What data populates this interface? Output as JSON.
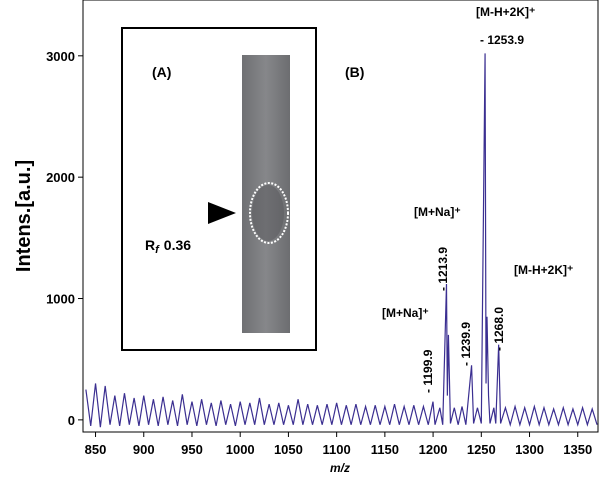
{
  "chart_data": {
    "type": "line",
    "xlabel": "m/z",
    "ylabel": "Intens.[a.u.]",
    "color": "#3b2f91",
    "xlim": [
      837,
      1371
    ],
    "ylim": [
      -100,
      3460
    ],
    "xticks": [
      850,
      900,
      950,
      1000,
      1050,
      1100,
      1150,
      1200,
      1250,
      1300,
      1350
    ],
    "yticks": [
      0,
      1000,
      2000,
      3000
    ],
    "x": [
      840,
      845,
      850,
      855,
      860,
      865,
      870,
      875,
      880,
      885,
      890,
      895,
      900,
      905,
      910,
      915,
      920,
      925,
      930,
      935,
      940,
      945,
      950,
      955,
      960,
      965,
      970,
      975,
      980,
      985,
      990,
      995,
      1000,
      1005,
      1010,
      1015,
      1020,
      1025,
      1030,
      1035,
      1040,
      1045,
      1050,
      1055,
      1060,
      1065,
      1070,
      1075,
      1080,
      1085,
      1090,
      1095,
      1100,
      1105,
      1110,
      1115,
      1120,
      1125,
      1130,
      1135,
      1140,
      1145,
      1150,
      1155,
      1160,
      1165,
      1170,
      1175,
      1180,
      1185,
      1190,
      1195,
      1199.9,
      1202,
      1207,
      1210,
      1213.9,
      1214.8,
      1215.9,
      1218,
      1222,
      1226,
      1230,
      1234,
      1239.9,
      1242,
      1246,
      1250,
      1253.9,
      1254.9,
      1255.9,
      1257.5,
      1259,
      1263,
      1265,
      1268.0,
      1270,
      1275,
      1280,
      1285,
      1290,
      1295,
      1300,
      1305,
      1310,
      1315,
      1320,
      1325,
      1330,
      1335,
      1340,
      1345,
      1350,
      1355,
      1360,
      1365,
      1370
    ],
    "values": [
      250,
      -50,
      300,
      -60,
      280,
      -40,
      200,
      -50,
      220,
      -40,
      180,
      -50,
      200,
      -40,
      170,
      -50,
      190,
      -40,
      160,
      -50,
      210,
      -40,
      150,
      -50,
      170,
      -40,
      140,
      -50,
      160,
      -40,
      130,
      -50,
      150,
      -40,
      140,
      -40,
      180,
      -40,
      130,
      -40,
      140,
      -40,
      120,
      -40,
      170,
      -40,
      130,
      -40,
      120,
      -40,
      130,
      -40,
      140,
      -40,
      120,
      -40,
      130,
      -40,
      110,
      -40,
      120,
      -40,
      110,
      -40,
      130,
      -40,
      110,
      -40,
      120,
      -40,
      110,
      -40,
      150,
      -40,
      100,
      -40,
      1120,
      200,
      700,
      -30,
      100,
      -40,
      110,
      -40,
      450,
      -30,
      100,
      -30,
      3020,
      300,
      850,
      200,
      -30,
      100,
      -30,
      620,
      -30,
      100,
      -40,
      110,
      -40,
      100,
      -40,
      110,
      -40,
      100,
      -40,
      90,
      -40,
      100,
      -40,
      90,
      -40,
      100,
      -40,
      90,
      -40
    ],
    "annotations": [
      "[M-H+2K]⁺",
      "- 1253.9",
      "[M+Na]⁺",
      "- 1213.9",
      "[M-H+2K]⁺",
      "- 1268.0",
      "[M+Na]⁺",
      "- 1199.9",
      "- 1239.9"
    ],
    "panel_labels": [
      "(A)",
      "(B)"
    ],
    "inset": {
      "rf_symbol": "R",
      "rf_subscript": "f",
      "rf_value": "0.36"
    }
  }
}
